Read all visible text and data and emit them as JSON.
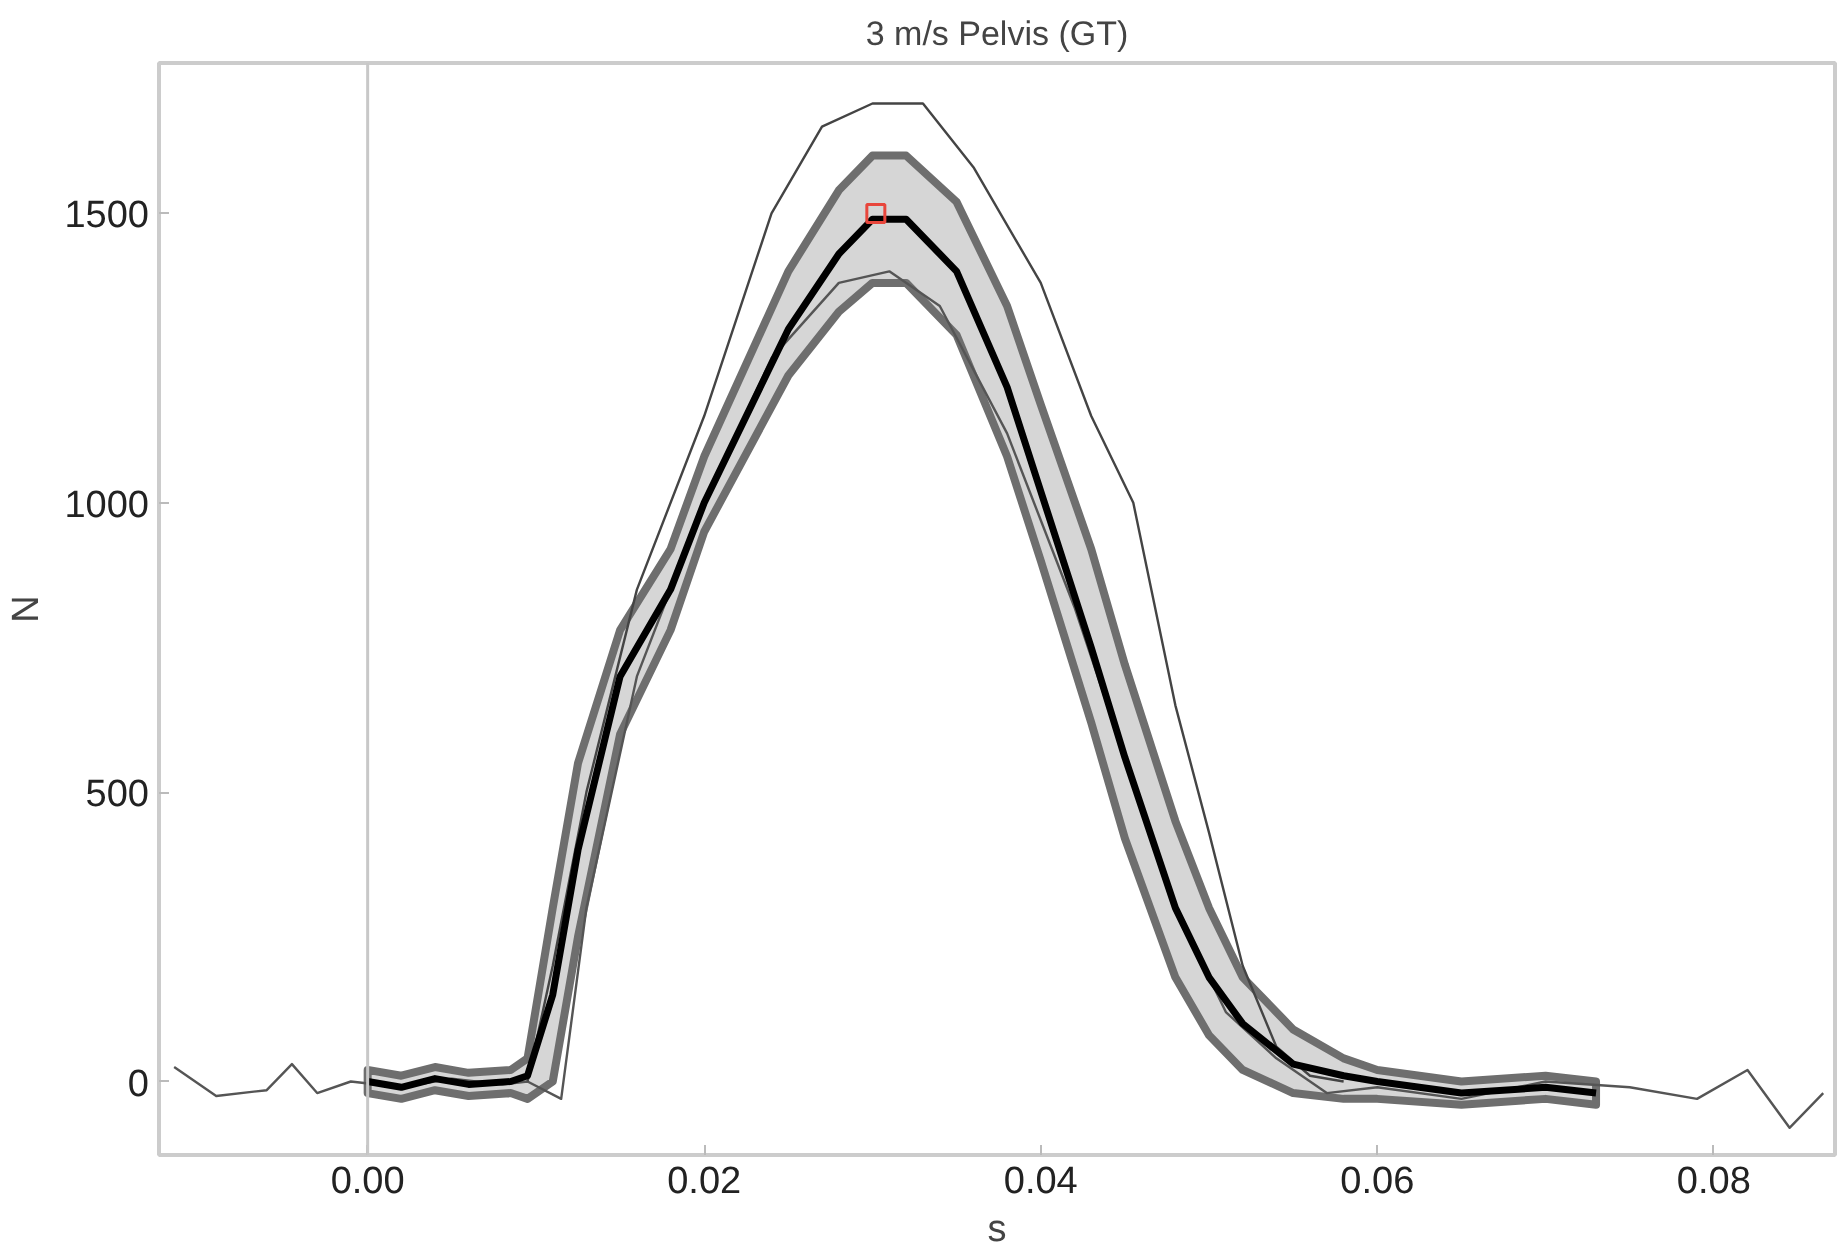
{
  "chart_data": {
    "type": "line",
    "title": "3 m/s Pelvis (GT)",
    "xlabel": "s",
    "ylabel": "N",
    "xlim": [
      -0.0124,
      0.0872
    ],
    "ylim": [
      -127,
      1760
    ],
    "xticks": [
      {
        "value": 0,
        "label": "0.00"
      },
      {
        "value": 0.02,
        "label": "0.02"
      },
      {
        "value": 0.04,
        "label": "0.04"
      },
      {
        "value": 0.06,
        "label": "0.06"
      },
      {
        "value": 0.08,
        "label": "0.08"
      }
    ],
    "yticks": [
      0,
      500,
      1000,
      1500
    ],
    "grid": false,
    "line_style": "solid",
    "marker": "none",
    "ref_lines": [
      {
        "axis": "x",
        "value": 0,
        "color": "#c8c8c8"
      }
    ],
    "series": [
      {
        "color": "#555555",
        "x": [
          -0.0115,
          -0.009,
          -0.006,
          -0.0045,
          -0.003,
          -0.001,
          0.002,
          0.005,
          0.008,
          0.0095,
          0.0115,
          0.013,
          0.016,
          0.02,
          0.024,
          0.028,
          0.031,
          0.034,
          0.038,
          0.042,
          0.045,
          0.048,
          0.051,
          0.054,
          0.057,
          0.06,
          0.065,
          0.07,
          0.075,
          0.079,
          0.082,
          0.0845,
          0.0865
        ],
        "values": [
          25,
          -25,
          -15,
          30,
          -20,
          0,
          -10,
          5,
          -5,
          0,
          -30,
          300,
          700,
          1000,
          1250,
          1380,
          1400,
          1340,
          1120,
          820,
          560,
          300,
          120,
          40,
          -20,
          -10,
          -30,
          0,
          -10,
          -30,
          20,
          -80,
          -20
        ]
      },
      {
        "color": "#444444",
        "x": [
          0.0095,
          0.011,
          0.013,
          0.016,
          0.02,
          0.024,
          0.027,
          0.03,
          0.033,
          0.036,
          0.04,
          0.043,
          0.0455,
          0.048,
          0.05,
          0.052,
          0.054,
          0.056,
          0.058
        ],
        "values": [
          0,
          200,
          500,
          850,
          1150,
          1500,
          1650,
          1690,
          1690,
          1580,
          1380,
          1150,
          1000,
          650,
          430,
          200,
          60,
          10,
          0
        ]
      },
      {
        "color": "#000000",
        "x": [
          0,
          0.002,
          0.004,
          0.006,
          0.0085,
          0.0095,
          0.011,
          0.0125,
          0.015,
          0.018,
          0.02,
          0.025,
          0.028,
          0.03,
          0.032,
          0.035,
          0.038,
          0.04,
          0.043,
          0.045,
          0.048,
          0.05,
          0.052,
          0.055,
          0.058,
          0.06,
          0.065,
          0.07,
          0.073
        ],
        "values": [
          0,
          -10,
          5,
          -5,
          0,
          10,
          150,
          400,
          700,
          850,
          1000,
          1300,
          1430,
          1490,
          1490,
          1400,
          1200,
          1020,
          750,
          560,
          300,
          180,
          100,
          30,
          10,
          0,
          -20,
          -10,
          -20
        ],
        "lower": [
          -20,
          -30,
          -15,
          -25,
          -20,
          -30,
          0,
          250,
          600,
          780,
          950,
          1220,
          1330,
          1380,
          1380,
          1290,
          1080,
          900,
          620,
          420,
          180,
          80,
          20,
          -20,
          -30,
          -30,
          -40,
          -30,
          -40
        ],
        "upper": [
          20,
          10,
          25,
          15,
          20,
          40,
          300,
          550,
          780,
          920,
          1080,
          1400,
          1540,
          1600,
          1600,
          1520,
          1340,
          1170,
          920,
          720,
          450,
          300,
          180,
          90,
          40,
          20,
          0,
          10,
          0
        ]
      },
      {
        "type": "scatter",
        "color": "#e8463c",
        "marker": "square",
        "x": [
          0.0302
        ],
        "values": [
          1500
        ]
      }
    ]
  }
}
